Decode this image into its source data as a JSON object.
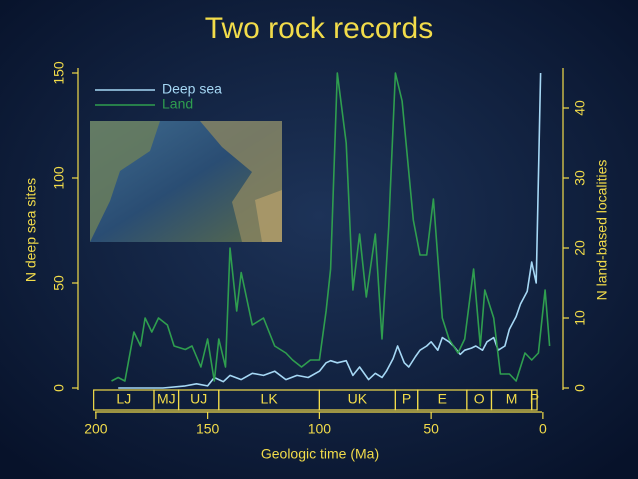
{
  "chart_data": {
    "type": "line",
    "title": "Two rock records",
    "x_label": "Geologic time (Ma)",
    "y_label": "N deep sea sites",
    "y2_label": "N land-based localities",
    "xlim": [
      208,
      -9
    ],
    "xticks": [
      200,
      150,
      100,
      50,
      0
    ],
    "ylim": [
      0,
      150
    ],
    "yticks": [
      0,
      50,
      100,
      150
    ],
    "y2lim": [
      0,
      45
    ],
    "y2ticks": [
      0,
      10,
      20,
      30,
      40
    ],
    "legend": "top-left",
    "series": [
      {
        "name": "Deep sea",
        "color": "#a6d8f5",
        "axis": "y",
        "x": [
          190,
          180,
          170,
          160,
          155,
          150,
          147,
          143,
          140,
          135,
          130,
          125,
          120,
          115,
          110,
          105,
          100,
          97,
          95,
          92,
          88,
          85,
          82,
          78,
          75,
          72,
          70,
          67,
          65,
          62,
          60,
          57,
          55,
          52,
          50,
          47,
          45,
          42,
          40,
          37,
          35,
          32,
          30,
          27,
          25,
          22,
          20,
          17,
          15,
          12,
          10,
          7,
          5,
          3,
          1
        ],
        "values": [
          0,
          0,
          0,
          1,
          2,
          1,
          5,
          3,
          6,
          4,
          7,
          6,
          8,
          4,
          6,
          5,
          8,
          12,
          13,
          12,
          13,
          6,
          10,
          4,
          7,
          5,
          8,
          14,
          20,
          12,
          10,
          15,
          18,
          20,
          22,
          18,
          24,
          22,
          20,
          16,
          18,
          19,
          20,
          18,
          22,
          24,
          18,
          20,
          28,
          34,
          40,
          46,
          60,
          50,
          150
        ]
      },
      {
        "name": "Land",
        "color": "#2f9e4f",
        "axis": "y2",
        "x": [
          193,
          190,
          187,
          183,
          180,
          178,
          175,
          172,
          168,
          165,
          160,
          157,
          153,
          150,
          147,
          145,
          142,
          140,
          137,
          135,
          130,
          125,
          120,
          115,
          112,
          108,
          104,
          100,
          97,
          95,
          92,
          88,
          85,
          82,
          79,
          75,
          72,
          69,
          66,
          63,
          58,
          55,
          52,
          49,
          45,
          42,
          38,
          35,
          31,
          28,
          26,
          22,
          19,
          15,
          12,
          8,
          5,
          2,
          -1,
          -3
        ],
        "values": [
          1,
          1.5,
          1,
          8,
          6,
          10,
          8,
          10,
          9,
          6,
          5.5,
          6,
          3,
          7,
          1,
          7,
          3,
          20,
          11,
          16.5,
          9,
          10,
          6,
          5,
          4,
          3,
          4,
          4,
          11,
          17,
          45,
          35,
          14,
          22,
          13,
          22,
          7,
          23,
          45,
          41,
          24,
          19,
          19,
          27,
          10,
          7,
          5,
          7,
          17,
          6,
          14,
          10,
          2,
          2,
          1,
          5,
          4,
          5,
          14,
          6
        ]
      }
    ],
    "periods": [
      {
        "label": "LJ",
        "start": 201,
        "end": 174
      },
      {
        "label": "MJ",
        "start": 174,
        "end": 163
      },
      {
        "label": "UJ",
        "start": 163,
        "end": 145
      },
      {
        "label": "LK",
        "start": 145,
        "end": 100
      },
      {
        "label": "UK",
        "start": 100,
        "end": 66
      },
      {
        "label": "P",
        "start": 66,
        "end": 56
      },
      {
        "label": "E",
        "start": 56,
        "end": 34
      },
      {
        "label": "O",
        "start": 34,
        "end": 23
      },
      {
        "label": "M",
        "start": 23,
        "end": 5
      },
      {
        "label": "P",
        "start": 5,
        "end": 2.6
      }
    ]
  }
}
